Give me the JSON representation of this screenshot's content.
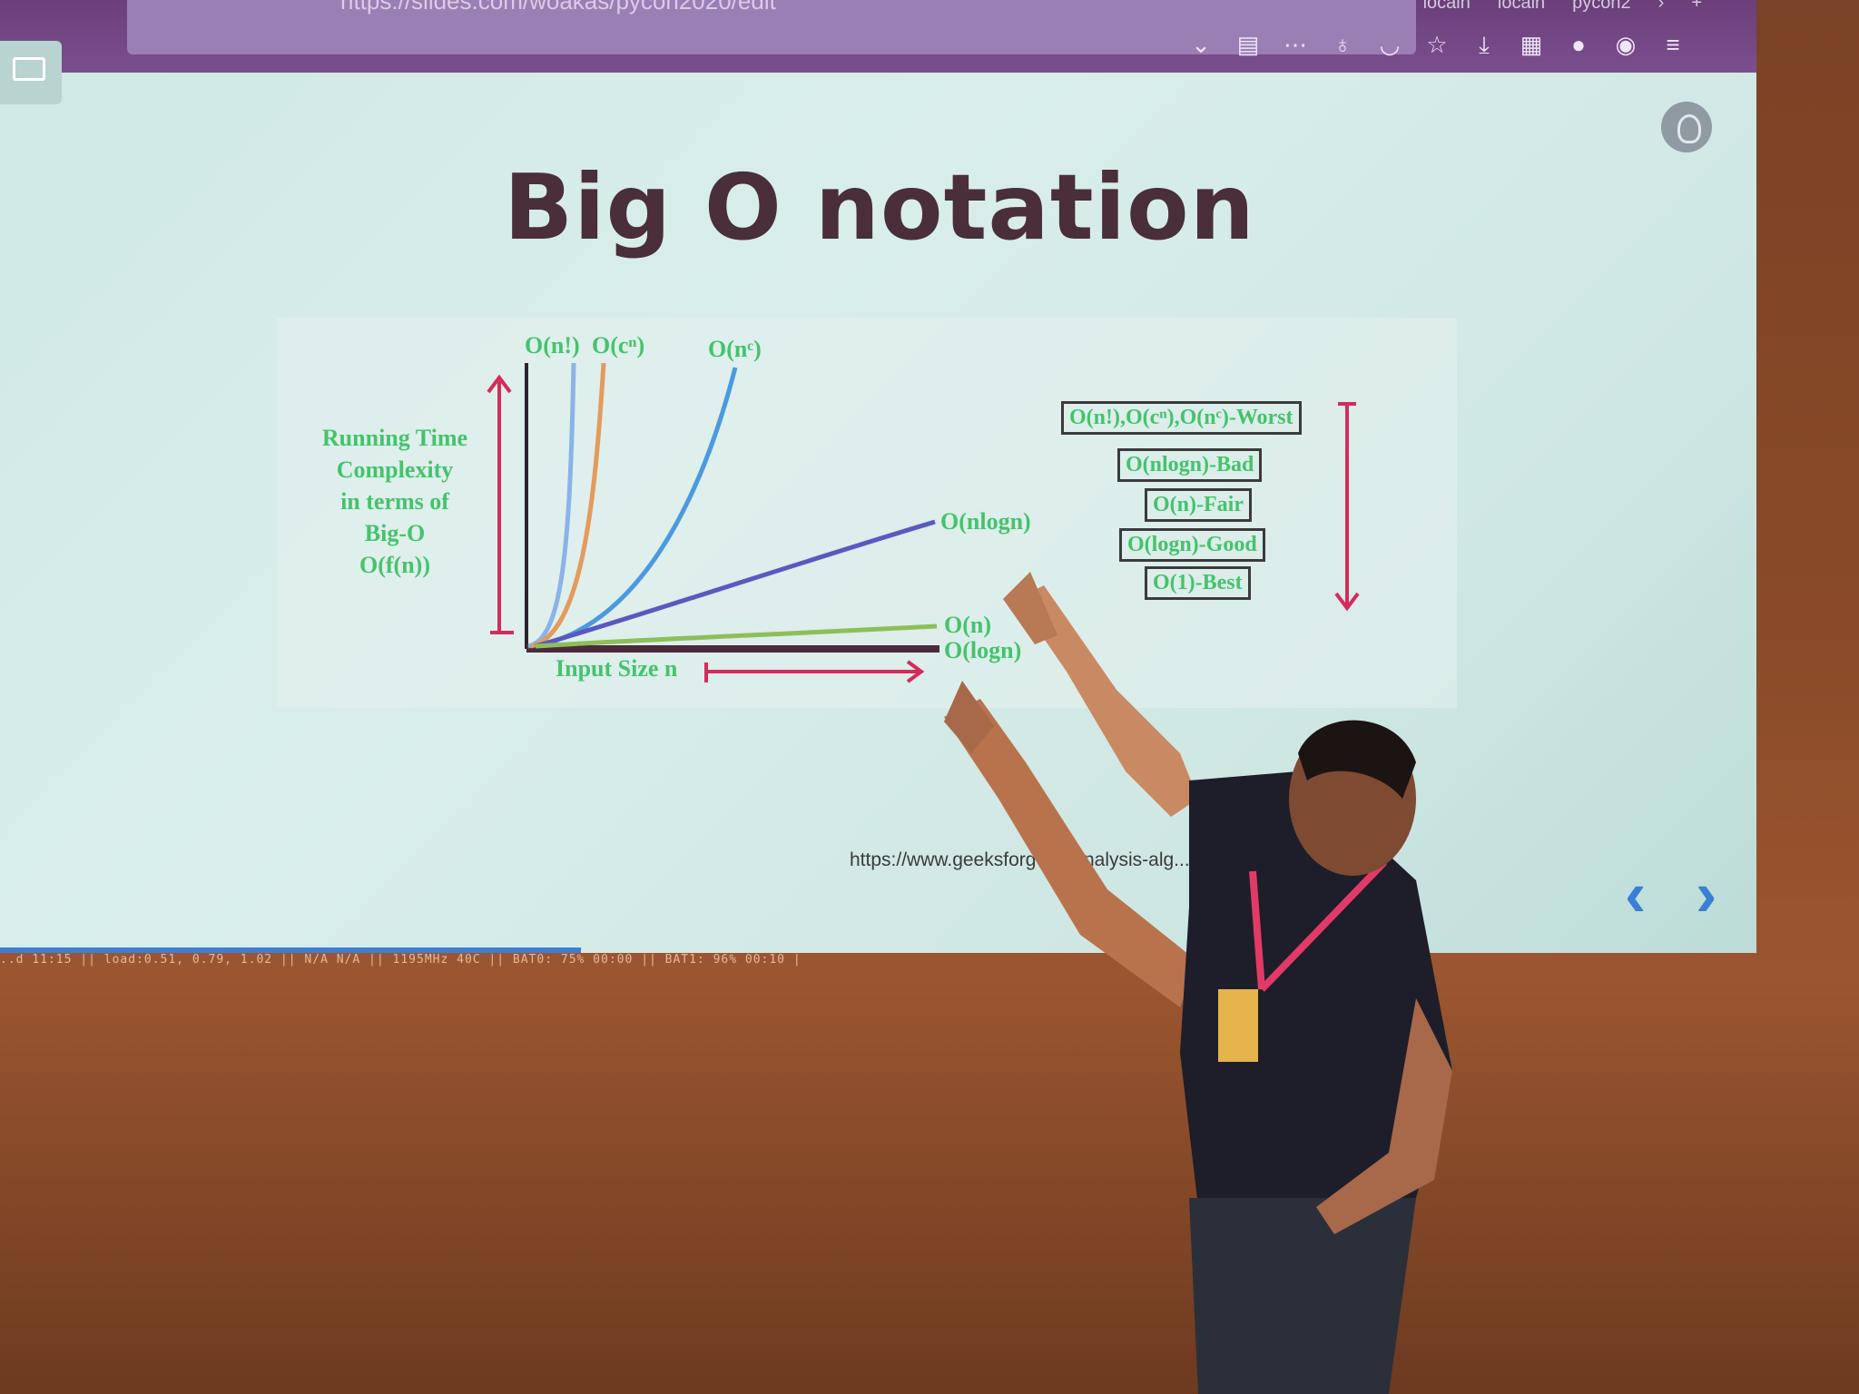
{
  "browser": {
    "url": "https://slides.com/woakas/pycon2020/edit",
    "tabs": [
      "localh",
      "localh",
      "pycon2"
    ]
  },
  "slide": {
    "title": "Big O notation",
    "y_axis_label_lines": [
      "Running Time",
      "Complexity",
      "in terms of",
      "Big-O",
      "O(f(n))"
    ],
    "x_axis_label": "Input Size n",
    "curve_labels": {
      "factorial": "O(n!)",
      "exponential": "O(cⁿ)",
      "polynomial": "O(nᶜ)",
      "nlogn": "O(nlogn)",
      "linear": "O(n)",
      "log": "O(logn)"
    },
    "legend": [
      "O(n!),O(cⁿ),O(nᶜ)-Worst",
      "O(nlogn)-Bad",
      "O(n)-Fair",
      "O(logn)-Good",
      "O(1)-Best"
    ],
    "source_url": "https://www.geeksforge... /analysis-alg...",
    "colors": {
      "label_green": "#45c36c",
      "arrow_red": "#d42b5c",
      "curve_blue_light": "#8ab4e8",
      "curve_orange": "#e49b5b",
      "curve_blue": "#4a9ae0",
      "curve_purple": "#5b58c0",
      "curve_green": "#8cbf5a",
      "curve_dark": "#4b2a3c"
    }
  },
  "statusbar": {
    "text": "..d 11:15 || load:0.51, 0.79, 1.02 || N/A N/A || 1195MHz 40C || BAT0: 75% 00:00 || BAT1: 96% 00:10 |"
  }
}
